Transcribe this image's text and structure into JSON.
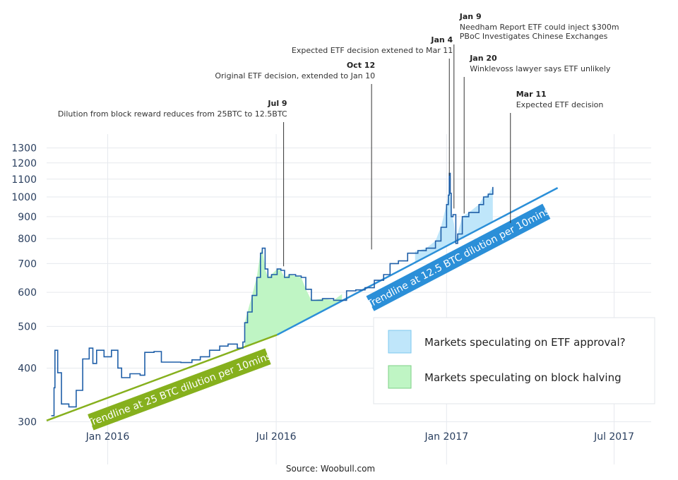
{
  "chart_data": {
    "type": "area",
    "y_scale": "log",
    "ylim": [
      295,
      1400
    ],
    "xlim": [
      "2015-10-27",
      "2017-08-10"
    ],
    "x_ticks": [
      {
        "date": "2016-01-01",
        "label": "Jan 2016"
      },
      {
        "date": "2016-07-01",
        "label": "Jul 2016"
      },
      {
        "date": "2017-01-01",
        "label": "Jan 2017"
      },
      {
        "date": "2017-07-01",
        "label": "Jul 2017"
      }
    ],
    "y_ticks": [
      300,
      400,
      500,
      600,
      700,
      800,
      900,
      1000,
      1100,
      1200,
      1300
    ],
    "grid": true,
    "price_series": {
      "color": "#1f5fa8",
      "x": [
        "2015-11-01",
        "2015-11-04",
        "2015-11-05",
        "2015-11-08",
        "2015-11-12",
        "2015-11-20",
        "2015-11-28",
        "2015-12-05",
        "2015-12-12",
        "2015-12-16",
        "2015-12-20",
        "2015-12-28",
        "2016-01-05",
        "2016-01-12",
        "2016-01-16",
        "2016-01-25",
        "2016-02-05",
        "2016-02-10",
        "2016-02-20",
        "2016-02-28",
        "2016-03-10",
        "2016-03-20",
        "2016-04-01",
        "2016-04-10",
        "2016-04-20",
        "2016-05-01",
        "2016-05-10",
        "2016-05-20",
        "2016-05-26",
        "2016-05-28",
        "2016-05-31",
        "2016-06-05",
        "2016-06-10",
        "2016-06-14",
        "2016-06-16",
        "2016-06-19",
        "2016-06-22",
        "2016-06-26",
        "2016-07-02",
        "2016-07-06",
        "2016-07-10",
        "2016-07-15",
        "2016-07-22",
        "2016-07-28",
        "2016-08-02",
        "2016-08-08",
        "2016-08-20",
        "2016-09-01",
        "2016-09-15",
        "2016-09-25",
        "2016-10-05",
        "2016-10-15",
        "2016-10-25",
        "2016-11-01",
        "2016-11-10",
        "2016-11-20",
        "2016-12-01",
        "2016-12-10",
        "2016-12-20",
        "2016-12-26",
        "2017-01-01",
        "2017-01-03",
        "2017-01-04",
        "2017-01-05",
        "2017-01-06",
        "2017-01-08",
        "2017-01-11",
        "2017-01-13",
        "2017-01-18",
        "2017-01-25",
        "2017-02-05",
        "2017-02-10",
        "2017-02-15",
        "2017-02-20"
      ],
      "y": [
        310,
        360,
        440,
        390,
        330,
        325,
        355,
        420,
        445,
        410,
        440,
        425,
        440,
        400,
        380,
        388,
        385,
        435,
        437,
        413,
        413,
        412,
        418,
        425,
        440,
        450,
        455,
        445,
        460,
        510,
        540,
        590,
        650,
        740,
        760,
        680,
        650,
        660,
        680,
        675,
        650,
        660,
        655,
        650,
        610,
        575,
        580,
        575,
        605,
        608,
        615,
        640,
        660,
        700,
        710,
        740,
        750,
        760,
        790,
        850,
        960,
        1010,
        1135,
        1020,
        900,
        910,
        780,
        820,
        900,
        920,
        960,
        1000,
        1015,
        1055
      ]
    },
    "areas": [
      {
        "name": "Markets speculating on block halving",
        "color": "#bff5c4",
        "x_start": "2016-05-28",
        "x_end": "2016-09-10"
      },
      {
        "name": "Markets speculating on ETF approval?",
        "color": "#bfe6fa",
        "x_start": "2016-11-28",
        "x_end": "2017-02-20"
      }
    ],
    "trendlines": [
      {
        "label": "Trendline at 25 BTC dilution per 10mins",
        "color": "#86b01d",
        "x": [
          "2015-10-27",
          "2016-07-02"
        ],
        "y": [
          302,
          478
        ]
      },
      {
        "label": "Trendline at 12.5 BTC dilution per 10mins",
        "color": "#2b8fd8",
        "x": [
          "2016-07-02",
          "2017-05-01"
        ],
        "y": [
          478,
          1050
        ]
      }
    ],
    "annotations": [
      {
        "date": "Jul 9",
        "text": [
          "Dilution from block reward reduces from 25BTC to 12.5BTC"
        ],
        "x": "2016-07-09",
        "y_tip": 690,
        "align": "end"
      },
      {
        "date": "Oct 12",
        "text": [
          "Original ETF decision, extended to Jan 10"
        ],
        "x": "2016-10-12",
        "y_tip": 755,
        "align": "end"
      },
      {
        "date": "Jan 4",
        "text": [
          "Expected ETF decision extened to Mar 11"
        ],
        "x": "2017-01-04",
        "y_tip": 1120,
        "align": "end"
      },
      {
        "date": "Jan 9",
        "text": [
          "Needham Report ETF could inject $300m",
          "PBoC Investigates Chinese Exchanges"
        ],
        "x": "2017-01-09",
        "y_tip": 940,
        "align": "start"
      },
      {
        "date": "Jan 20",
        "text": [
          "Winklevoss lawyer says ETF unlikely"
        ],
        "x": "2017-01-20",
        "y_tip": 915,
        "align": "start"
      },
      {
        "date": "Mar 11",
        "text": [
          "Expected ETF decision"
        ],
        "x": "2017-03-11",
        "y_tip": 870,
        "align": "start"
      }
    ],
    "legend": {
      "placement": "bottom-right",
      "items": [
        {
          "label": "Markets speculating on ETF approval?",
          "color": "#bfe6fa",
          "border": "#7ec8ef"
        },
        {
          "label": "Markets speculating on block halving",
          "color": "#bff5c4",
          "border": "#7ccf86"
        }
      ]
    },
    "source": "Source: Woobull.com"
  }
}
